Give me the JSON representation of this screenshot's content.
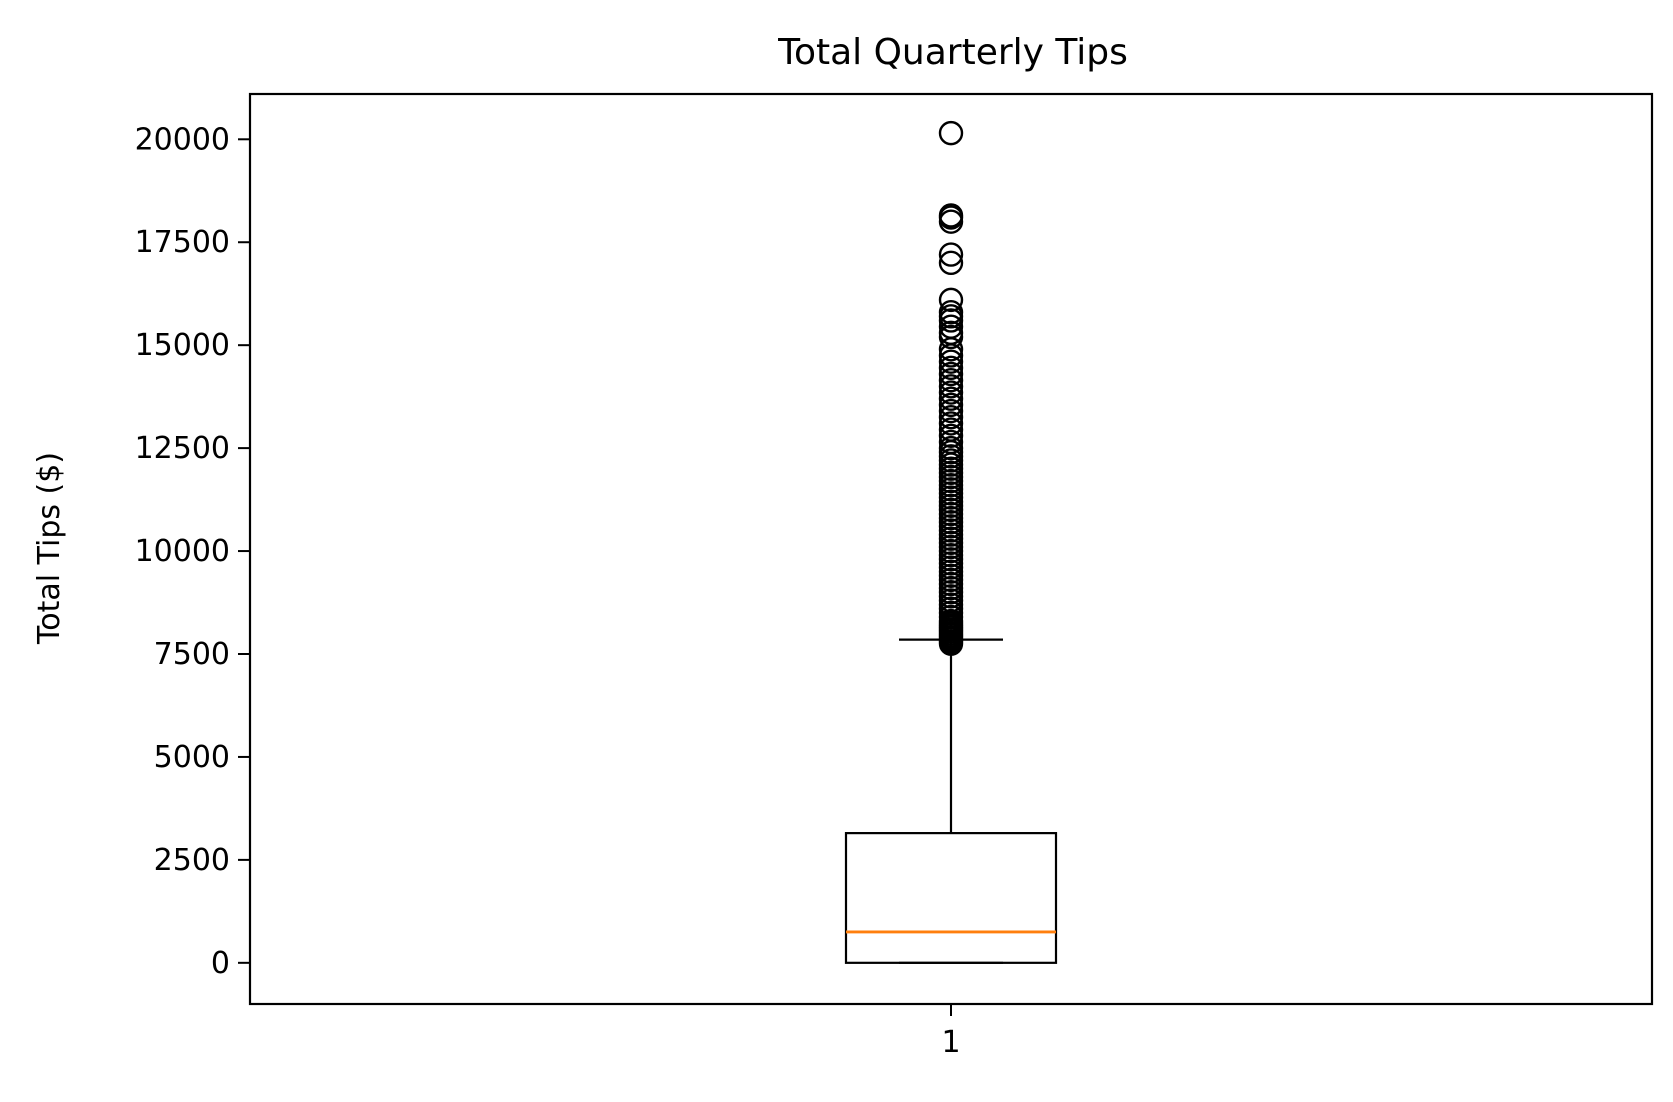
{
  "chart_data": {
    "type": "boxplot",
    "title": "Total Quarterly Tips",
    "xlabel": "",
    "ylabel": "Total Tips ($)",
    "categories": [
      "1"
    ],
    "ylim": [
      -1000,
      21100
    ],
    "yticks": [
      0,
      2500,
      5000,
      7500,
      10000,
      12500,
      15000,
      17500,
      20000
    ],
    "ytick_labels": [
      "0",
      "2500",
      "5000",
      "7500",
      "10000",
      "12500",
      "15000",
      "17500",
      "20000"
    ],
    "grid": false,
    "legend": "none",
    "boxes": [
      {
        "category": "1",
        "whisker_low": 0,
        "q1": 0,
        "median": 750,
        "q3": 3150,
        "whisker_high": 7850,
        "outliers": [
          7750,
          7800,
          7850,
          7900,
          7950,
          8000,
          8050,
          8100,
          8150,
          8200,
          8250,
          8300,
          8400,
          8500,
          8600,
          8700,
          8800,
          8900,
          9000,
          9100,
          9200,
          9300,
          9400,
          9500,
          9600,
          9700,
          9800,
          9900,
          10000,
          10100,
          10200,
          10300,
          10400,
          10500,
          10600,
          10700,
          10800,
          10900,
          11000,
          11100,
          11200,
          11300,
          11400,
          11500,
          11600,
          11700,
          11800,
          11900,
          12000,
          12100,
          12200,
          12300,
          12400,
          12500,
          12650,
          12800,
          12950,
          13100,
          13250,
          13400,
          13550,
          13700,
          13850,
          14000,
          14150,
          14300,
          14450,
          14600,
          14750,
          14900,
          15200,
          15300,
          15450,
          15600,
          15700,
          15800,
          16100,
          17000,
          17200,
          18000,
          18100,
          18150,
          20150
        ]
      }
    ]
  },
  "colors": {
    "box_edge": "#000000",
    "median": "#ff7f0e",
    "background": "#ffffff"
  }
}
